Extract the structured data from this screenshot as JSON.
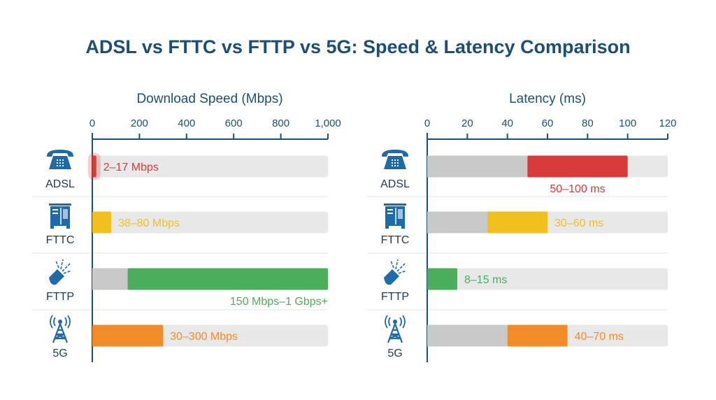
{
  "title": "ADSL vs FTTC vs FTTP vs 5G: Speed & Latency Comparison",
  "colors": {
    "axis": "#1d4f74",
    "track": "#e8e8e8",
    "gray_segment": "#c9c9c9",
    "ADSL": "#d93a3a",
    "FTTC": "#f2c01e",
    "FTTP": "#4cae5a",
    "5G": "#f28c28"
  },
  "rows": [
    {
      "label": "ADSL",
      "icon": "telephone-icon"
    },
    {
      "label": "FTTC",
      "icon": "street-cabinet-icon"
    },
    {
      "label": "FTTP",
      "icon": "fiber-optic-cable-icon"
    },
    {
      "label": "5G",
      "icon": "cell-tower-icon"
    }
  ],
  "chart_data": [
    {
      "type": "bar",
      "title": "Download Speed (Mbps)",
      "xlim": [
        0,
        1000
      ],
      "ticks": [
        0,
        200,
        400,
        600,
        800,
        1000
      ],
      "tick_labels": [
        "0",
        "200",
        "400",
        "600",
        "800",
        "1,000"
      ],
      "categories": [
        "ADSL",
        "FTTC",
        "FTTP",
        "5G"
      ],
      "ranges": [
        {
          "low": 2,
          "high": 17,
          "fill_from": 0,
          "label": "2–17 Mbps",
          "label_position": "right"
        },
        {
          "low": 38,
          "high": 80,
          "fill_from": 0,
          "label": "38–80 Mbps",
          "label_position": "right"
        },
        {
          "low": 150,
          "high": 1000,
          "fill_from": 150,
          "label": "150 Mbps–1 Gbps+",
          "label_position": "below-right"
        },
        {
          "low": 30,
          "high": 300,
          "fill_from": 0,
          "label": "30–300 Mbps",
          "label_position": "right"
        }
      ]
    },
    {
      "type": "bar",
      "title": "Latency (ms)",
      "xlim": [
        0,
        120
      ],
      "ticks": [
        0,
        20,
        40,
        60,
        80,
        100,
        120
      ],
      "tick_labels": [
        "0",
        "20",
        "40",
        "60",
        "80",
        "100",
        "120"
      ],
      "categories": [
        "ADSL",
        "FTTC",
        "FTTP",
        "5G"
      ],
      "ranges": [
        {
          "low": 50,
          "high": 100,
          "fill_from": 50,
          "label": "50–100 ms",
          "label_position": "below"
        },
        {
          "low": 30,
          "high": 60,
          "fill_from": 30,
          "label": "30–60 ms",
          "label_position": "right"
        },
        {
          "low": 8,
          "high": 15,
          "fill_from": 0,
          "label": "8–15 ms",
          "label_position": "right"
        },
        {
          "low": 40,
          "high": 70,
          "fill_from": 40,
          "label": "40–70 ms",
          "label_position": "right"
        }
      ]
    }
  ]
}
